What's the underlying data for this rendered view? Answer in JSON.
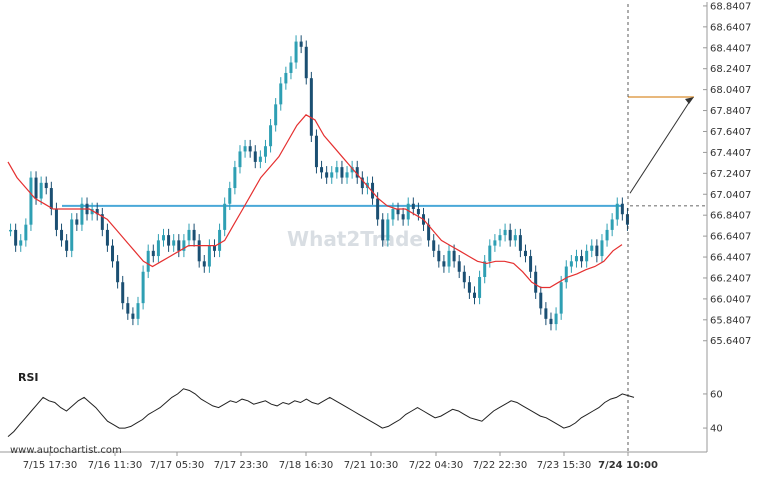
{
  "watermark": "What2Trade",
  "source_label": "www.autochartist.com",
  "rsi_label": "RSI",
  "colors": {
    "candle": "#1b4f72",
    "candle_up": "#2e9fb3",
    "moving_average": "#e53030",
    "support_line": "#4aa8d8",
    "target_line": "#e0a050",
    "rsi_line": "#222222",
    "grid": "#dddddd"
  },
  "chart_data": [
    {
      "type": "candlestick",
      "y_ticks": [
        "68.8407",
        "68.6407",
        "68.4407",
        "68.2407",
        "68.0407",
        "67.8407",
        "67.6407",
        "67.4407",
        "67.2407",
        "67.0407",
        "66.8407",
        "66.6407",
        "66.4407",
        "66.2407",
        "66.0407",
        "65.8407",
        "65.6407"
      ],
      "x_ticks": [
        "7/15 17:30",
        "7/16 11:30",
        "7/17 05:30",
        "7/17 23:30",
        "7/18 16:30",
        "7/21 10:30",
        "7/22 04:30",
        "7/22 22:30",
        "7/23 15:30",
        "7/24 10:00"
      ],
      "ylim": [
        65.6,
        68.84
      ],
      "grid": false,
      "support_level": 66.93,
      "target_level": 67.97,
      "series": [
        {
          "type": "price",
          "values": [
            66.7,
            66.55,
            66.6,
            66.75,
            67.2,
            67.0,
            67.15,
            67.1,
            66.9,
            66.7,
            66.6,
            66.5,
            66.8,
            66.75,
            66.95,
            66.85,
            66.9,
            66.85,
            66.7,
            66.55,
            66.4,
            66.2,
            66.0,
            65.9,
            65.85,
            66.0,
            66.3,
            66.5,
            66.45,
            66.6,
            66.65,
            66.55,
            66.6,
            66.5,
            66.6,
            66.7,
            66.6,
            66.4,
            66.35,
            66.55,
            66.5,
            66.7,
            66.95,
            67.1,
            67.3,
            67.45,
            67.5,
            67.45,
            67.35,
            67.4,
            67.5,
            67.7,
            67.9,
            68.1,
            68.2,
            68.3,
            68.5,
            68.45,
            68.15,
            67.6,
            67.3,
            67.25,
            67.2,
            67.25,
            67.3,
            67.2,
            67.25,
            67.3,
            67.2,
            67.1,
            67.15,
            67.0,
            66.8,
            66.6,
            66.8,
            66.9,
            66.85,
            66.8,
            66.95,
            66.9,
            66.85,
            66.75,
            66.6,
            66.5,
            66.4,
            66.35,
            66.5,
            66.4,
            66.3,
            66.2,
            66.1,
            66.05,
            66.25,
            66.4,
            66.55,
            66.6,
            66.65,
            66.7,
            66.6,
            66.65,
            66.5,
            66.45,
            66.3,
            66.1,
            65.95,
            65.85,
            65.8,
            65.9,
            66.2,
            66.35,
            66.4,
            66.45,
            66.4,
            66.5,
            66.55,
            66.45,
            66.6,
            66.7,
            66.8,
            66.95,
            66.85,
            66.75
          ]
        },
        {
          "type": "moving_average",
          "values": [
            67.35,
            67.2,
            67.1,
            67.0,
            66.95,
            66.9,
            66.9,
            66.9,
            66.9,
            66.9,
            66.85,
            66.8,
            66.7,
            66.6,
            66.5,
            66.4,
            66.35,
            66.4,
            66.45,
            66.5,
            66.55,
            66.55,
            66.55,
            66.55,
            66.6,
            66.75,
            66.9,
            67.05,
            67.2,
            67.3,
            67.4,
            67.55,
            67.7,
            67.8,
            67.75,
            67.6,
            67.5,
            67.4,
            67.3,
            67.2,
            67.1,
            67.0,
            66.93,
            66.9,
            66.9,
            66.85,
            66.8,
            66.7,
            66.6,
            66.55,
            66.5,
            66.45,
            66.4,
            66.38,
            66.4,
            66.4,
            66.38,
            66.3,
            66.2,
            66.15,
            66.15,
            66.2,
            66.25,
            66.28,
            66.32,
            66.35,
            66.4,
            66.5,
            66.56
          ]
        }
      ]
    },
    {
      "type": "line",
      "title": "RSI",
      "y_ticks": [
        "60",
        "40"
      ],
      "ylim": [
        33,
        67
      ],
      "series": [
        {
          "type": "rsi",
          "values": [
            35,
            38,
            42,
            46,
            50,
            54,
            58,
            56,
            55,
            52,
            50,
            53,
            56,
            58,
            55,
            52,
            48,
            44,
            42,
            40,
            40,
            41,
            43,
            45,
            48,
            50,
            52,
            55,
            58,
            60,
            63,
            62,
            60,
            57,
            55,
            53,
            52,
            54,
            56,
            55,
            57,
            56,
            54,
            55,
            56,
            54,
            53,
            55,
            54,
            56,
            55,
            57,
            55,
            54,
            56,
            58,
            56,
            54,
            52,
            50,
            48,
            46,
            44,
            42,
            40,
            41,
            43,
            45,
            48,
            50,
            52,
            50,
            48,
            46,
            47,
            49,
            51,
            50,
            48,
            46,
            45,
            44,
            47,
            50,
            52,
            54,
            56,
            55,
            53,
            51,
            49,
            47,
            46,
            44,
            42,
            40,
            41,
            43,
            46,
            48,
            50,
            52,
            55,
            57,
            58,
            60,
            59,
            58
          ]
        }
      ]
    }
  ]
}
